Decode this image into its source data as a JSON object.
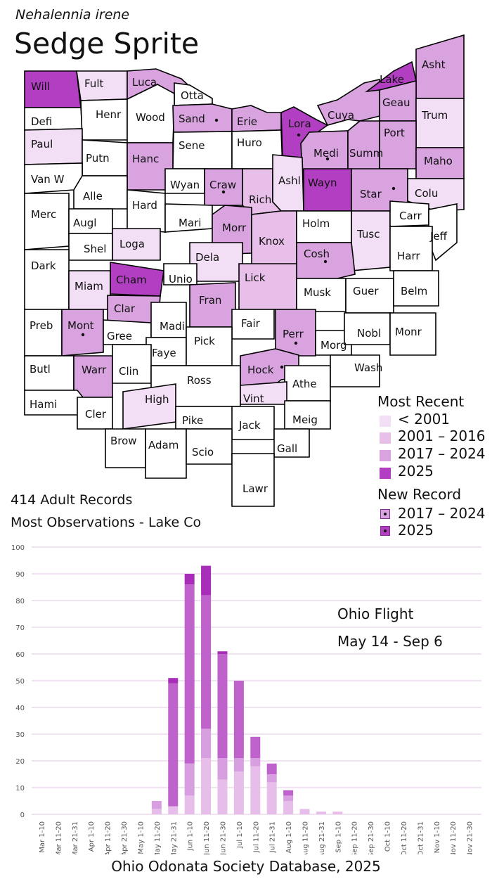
{
  "header": {
    "scientific_name": "Nehalennia irene",
    "common_name": "Sedge Sprite"
  },
  "stats": {
    "records": "414 Adult Records",
    "most_observations": "Most Observations - Lake Co"
  },
  "colors": {
    "pre2001": "#f3dff5",
    "y2001_2016": "#e7bfe9",
    "y2017_2024": "#d8a3df",
    "y2025": "#b23fc2",
    "none": "#ffffff"
  },
  "map_legend": {
    "title": "Most Recent",
    "items": [
      {
        "label": "< 2001",
        "color_key": "pre2001"
      },
      {
        "label": "2001 – 2016",
        "color_key": "y2001_2016"
      },
      {
        "label": "2017 – 2024",
        "color_key": "y2017_2024"
      },
      {
        "label": "2025",
        "color_key": "y2025"
      }
    ],
    "new_record_title": "New Record",
    "new_record_items": [
      {
        "label": "2017 – 2024",
        "color_key": "y2017_2024"
      },
      {
        "label": "2025",
        "color_key": "y2025"
      }
    ]
  },
  "counties": [
    {
      "name": "Will",
      "status": "y2025",
      "new_record": false
    },
    {
      "name": "Fult",
      "status": "pre2001",
      "new_record": false
    },
    {
      "name": "Luca",
      "status": "y2017_2024",
      "new_record": false
    },
    {
      "name": "Otta",
      "status": "none",
      "new_record": false
    },
    {
      "name": "Defi",
      "status": "none",
      "new_record": false
    },
    {
      "name": "Henr",
      "status": "none",
      "new_record": false
    },
    {
      "name": "Wood",
      "status": "none",
      "new_record": false
    },
    {
      "name": "Sand",
      "status": "y2017_2024",
      "new_record": true
    },
    {
      "name": "Erie",
      "status": "y2017_2024",
      "new_record": false
    },
    {
      "name": "Lora",
      "status": "y2025",
      "new_record": true
    },
    {
      "name": "Cuya",
      "status": "y2017_2024",
      "new_record": false
    },
    {
      "name": "Lake",
      "status": "y2025",
      "new_record": false
    },
    {
      "name": "Asht",
      "status": "y2017_2024",
      "new_record": false
    },
    {
      "name": "Geau",
      "status": "y2017_2024",
      "new_record": false
    },
    {
      "name": "Trum",
      "status": "pre2001",
      "new_record": false
    },
    {
      "name": "Paul",
      "status": "pre2001",
      "new_record": false
    },
    {
      "name": "Putn",
      "status": "none",
      "new_record": false
    },
    {
      "name": "Hanc",
      "status": "y2017_2024",
      "new_record": false
    },
    {
      "name": "Sene",
      "status": "none",
      "new_record": false
    },
    {
      "name": "Huro",
      "status": "none",
      "new_record": false
    },
    {
      "name": "Medi",
      "status": "y2017_2024",
      "new_record": true
    },
    {
      "name": "Summ",
      "status": "y2017_2024",
      "new_record": false
    },
    {
      "name": "Port",
      "status": "y2017_2024",
      "new_record": false
    },
    {
      "name": "Maho",
      "status": "y2017_2024",
      "new_record": false
    },
    {
      "name": "Van W",
      "status": "none",
      "new_record": false
    },
    {
      "name": "Alle",
      "status": "none",
      "new_record": false
    },
    {
      "name": "Wyan",
      "status": "none",
      "new_record": false
    },
    {
      "name": "Craw",
      "status": "y2017_2024",
      "new_record": true
    },
    {
      "name": "Rich",
      "status": "y2001_2016",
      "new_record": false
    },
    {
      "name": "Ashl",
      "status": "pre2001",
      "new_record": false
    },
    {
      "name": "Wayn",
      "status": "y2025",
      "new_record": false
    },
    {
      "name": "Star",
      "status": "y2017_2024",
      "new_record": true
    },
    {
      "name": "Colu",
      "status": "pre2001",
      "new_record": false
    },
    {
      "name": "Merc",
      "status": "none",
      "new_record": false
    },
    {
      "name": "Augl",
      "status": "none",
      "new_record": false
    },
    {
      "name": "Hard",
      "status": "none",
      "new_record": false
    },
    {
      "name": "Mari",
      "status": "none",
      "new_record": false
    },
    {
      "name": "Morr",
      "status": "y2017_2024",
      "new_record": false
    },
    {
      "name": "Knox",
      "status": "y2001_2016",
      "new_record": false
    },
    {
      "name": "Holm",
      "status": "none",
      "new_record": false
    },
    {
      "name": "Tusc",
      "status": "pre2001",
      "new_record": false
    },
    {
      "name": "Carr",
      "status": "none",
      "new_record": false
    },
    {
      "name": "Jeff",
      "status": "none",
      "new_record": false
    },
    {
      "name": "Shel",
      "status": "none",
      "new_record": false
    },
    {
      "name": "Loga",
      "status": "pre2001",
      "new_record": false
    },
    {
      "name": "Dela",
      "status": "pre2001",
      "new_record": false
    },
    {
      "name": "Cosh",
      "status": "y2017_2024",
      "new_record": true
    },
    {
      "name": "Harr",
      "status": "none",
      "new_record": false
    },
    {
      "name": "Dark",
      "status": "none",
      "new_record": false
    },
    {
      "name": "Miam",
      "status": "pre2001",
      "new_record": false
    },
    {
      "name": "Cham",
      "status": "y2025",
      "new_record": false
    },
    {
      "name": "Unio",
      "status": "none",
      "new_record": false
    },
    {
      "name": "Lick",
      "status": "y2001_2016",
      "new_record": false
    },
    {
      "name": "Musk",
      "status": "none",
      "new_record": false
    },
    {
      "name": "Guer",
      "status": "none",
      "new_record": false
    },
    {
      "name": "Belm",
      "status": "none",
      "new_record": false
    },
    {
      "name": "Clar",
      "status": "y2017_2024",
      "new_record": false
    },
    {
      "name": "Fran",
      "status": "y2017_2024",
      "new_record": false
    },
    {
      "name": "Preb",
      "status": "none",
      "new_record": false
    },
    {
      "name": "Mont",
      "status": "y2017_2024",
      "new_record": true
    },
    {
      "name": "Gree",
      "status": "none",
      "new_record": false
    },
    {
      "name": "Madi",
      "status": "none",
      "new_record": false
    },
    {
      "name": "Fair",
      "status": "none",
      "new_record": false
    },
    {
      "name": "Perr",
      "status": "y2017_2024",
      "new_record": true
    },
    {
      "name": "Morg",
      "status": "none",
      "new_record": false
    },
    {
      "name": "Nobl",
      "status": "none",
      "new_record": false
    },
    {
      "name": "Monr",
      "status": "none",
      "new_record": false
    },
    {
      "name": "Faye",
      "status": "none",
      "new_record": false
    },
    {
      "name": "Pick",
      "status": "none",
      "new_record": false
    },
    {
      "name": "Butl",
      "status": "none",
      "new_record": false
    },
    {
      "name": "Warr",
      "status": "y2017_2024",
      "new_record": false
    },
    {
      "name": "Clin",
      "status": "none",
      "new_record": false
    },
    {
      "name": "Ross",
      "status": "none",
      "new_record": false
    },
    {
      "name": "Hock",
      "status": "y2017_2024",
      "new_record": true
    },
    {
      "name": "Athe",
      "status": "none",
      "new_record": false
    },
    {
      "name": "Wash",
      "status": "none",
      "new_record": false
    },
    {
      "name": "Hami",
      "status": "none",
      "new_record": false
    },
    {
      "name": "Cler",
      "status": "none",
      "new_record": false
    },
    {
      "name": "High",
      "status": "pre2001",
      "new_record": false
    },
    {
      "name": "Vint",
      "status": "pre2001",
      "new_record": false
    },
    {
      "name": "Meig",
      "status": "none",
      "new_record": false
    },
    {
      "name": "Pike",
      "status": "none",
      "new_record": false
    },
    {
      "name": "Jack",
      "status": "none",
      "new_record": false
    },
    {
      "name": "Brow",
      "status": "none",
      "new_record": false
    },
    {
      "name": "Adam",
      "status": "none",
      "new_record": false
    },
    {
      "name": "Scio",
      "status": "none",
      "new_record": false
    },
    {
      "name": "Gall",
      "status": "none",
      "new_record": false
    },
    {
      "name": "Lawr",
      "status": "none",
      "new_record": false
    }
  ],
  "chart_data": {
    "type": "bar",
    "stacked": true,
    "title": "",
    "xlabel": "",
    "ylabel": "",
    "ylim": [
      0,
      100
    ],
    "y_ticks": [
      0,
      10,
      20,
      30,
      40,
      50,
      60,
      70,
      80,
      90,
      100
    ],
    "grid": true,
    "categories": [
      "Mar 1-10",
      "Mar 11-20",
      "Mar 21-31",
      "Apr 1-10",
      "Apr 11-20",
      "Apr 21-30",
      "May 1-10",
      "May 11-20",
      "May 21-31",
      "Jun 1-10",
      "Jun 11-20",
      "Jun 21-30",
      "Jul 1-10",
      "Jul 11-20",
      "Jul 21-31",
      "Aug 1-10",
      "Aug 11-20",
      "Aug 21-31",
      "Sep 1-10",
      "Sep 11-20",
      "Sep 21-30",
      "Oct 1-10",
      "Oct 11-20",
      "Oct 21-31",
      "Nov 1-10",
      "Nov 11-20",
      "Nov 21-30"
    ],
    "series": [
      {
        "color_key": "y2001_2016",
        "values": [
          0,
          0,
          0,
          0,
          0,
          0,
          0,
          2,
          3,
          7,
          21,
          13,
          16,
          18,
          12,
          5,
          2,
          1,
          1,
          0,
          0,
          0,
          0,
          0,
          0,
          0,
          0
        ]
      },
      {
        "color_key": "y2017_2024",
        "values": [
          0,
          0,
          0,
          0,
          0,
          0,
          0,
          3,
          0,
          12,
          11,
          8,
          5,
          3,
          3,
          2,
          0,
          0,
          0,
          0,
          0,
          0,
          0,
          0,
          0,
          0,
          0
        ]
      },
      {
        "color_key": "y2025_bar",
        "values": [
          0,
          0,
          0,
          0,
          0,
          0,
          0,
          0,
          46,
          67,
          50,
          39,
          29,
          8,
          4,
          2,
          0,
          0,
          0,
          0,
          0,
          0,
          0,
          0,
          0,
          0,
          0
        ]
      },
      {
        "color_key": "y2025",
        "values": [
          0,
          0,
          0,
          0,
          0,
          0,
          0,
          0,
          2,
          4,
          11,
          1,
          0,
          0,
          0,
          0,
          0,
          0,
          0,
          0,
          0,
          0,
          0,
          0,
          0,
          0,
          0
        ]
      }
    ],
    "bar_colors": {
      "y2001_2016": "#e7bde9",
      "y2017_2024": "#d89fe0",
      "y2025_bar": "#c062cc",
      "y2025": "#a82db8"
    },
    "annotations": [
      "Ohio Flight",
      "May 14 - Sep 6"
    ]
  },
  "footer": "Ohio Odonata Society Database, 2025"
}
